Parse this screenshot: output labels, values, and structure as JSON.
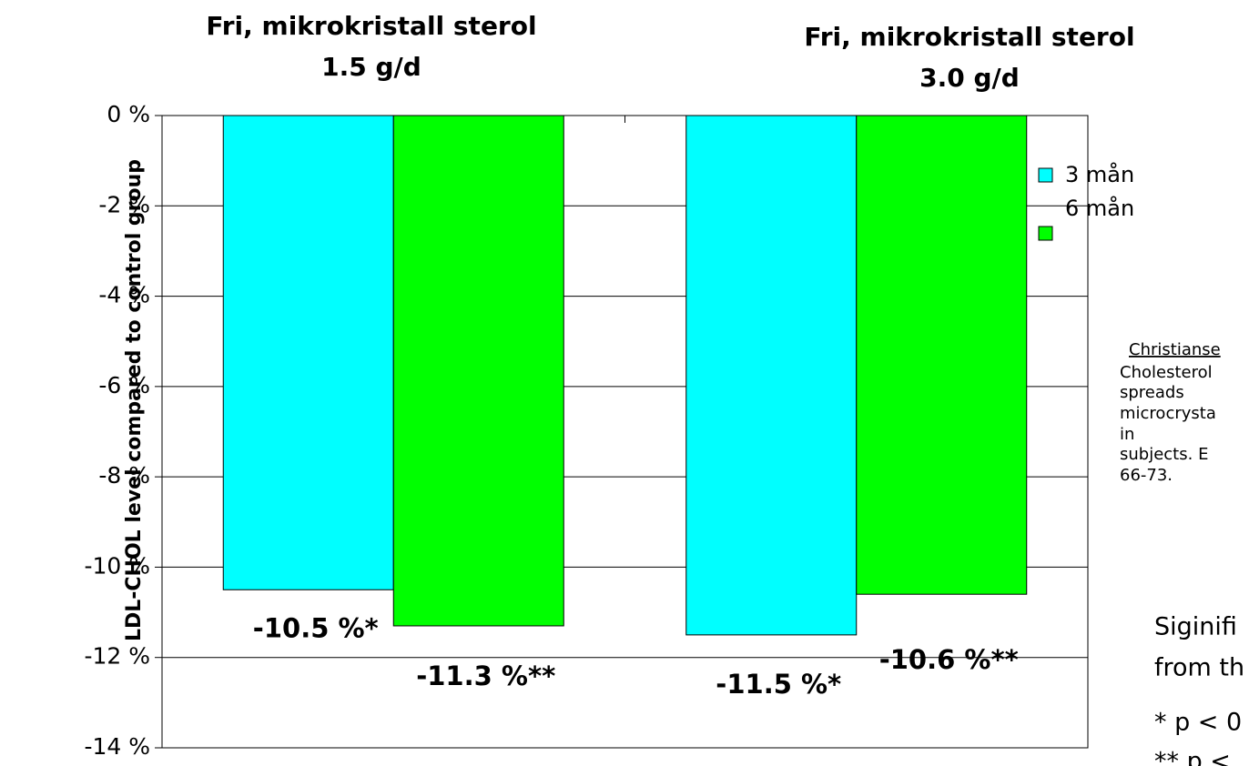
{
  "chart_data": {
    "type": "bar",
    "categories": [
      [
        "Fri, mikrokristall  sterol",
        "1.5 g/d"
      ],
      [
        "Fri, mikrokristall  sterol",
        "3.0 g/d"
      ]
    ],
    "y_label": "LDL-CHOL level compared to control group",
    "series": [
      {
        "name": "3 mån",
        "color": "#00ffff",
        "values": [
          -10.5,
          -11.5
        ],
        "value_labels": [
          "-10.5 %*",
          "-11.5 %*"
        ]
      },
      {
        "name": "6 mån",
        "color": "#00ff00",
        "values": [
          -11.3,
          -10.6
        ],
        "value_labels": [
          "-11.3 %**",
          "-10.6 %**"
        ]
      }
    ],
    "ylim": [
      -14,
      0
    ],
    "yticks": [
      {
        "value": 0,
        "label": "0 %"
      },
      {
        "value": -2,
        "label": "-2 %"
      },
      {
        "value": -4,
        "label": "-4 %"
      },
      {
        "value": -6,
        "label": "-6 %"
      },
      {
        "value": -8,
        "label": "-8 %"
      },
      {
        "value": -10,
        "label": "-10 %"
      },
      {
        "value": -12,
        "label": "-12 %"
      },
      {
        "value": -14,
        "label": "-14 %"
      }
    ],
    "grid": true,
    "legend": "right",
    "reference": [
      "Christianse",
      "Cholesterol",
      "spreads",
      "microcrysta",
      "in",
      "subjects. E",
      "66-73."
    ],
    "notes": [
      "Siginifi",
      "from th",
      "* p < 0",
      "** p <"
    ]
  }
}
